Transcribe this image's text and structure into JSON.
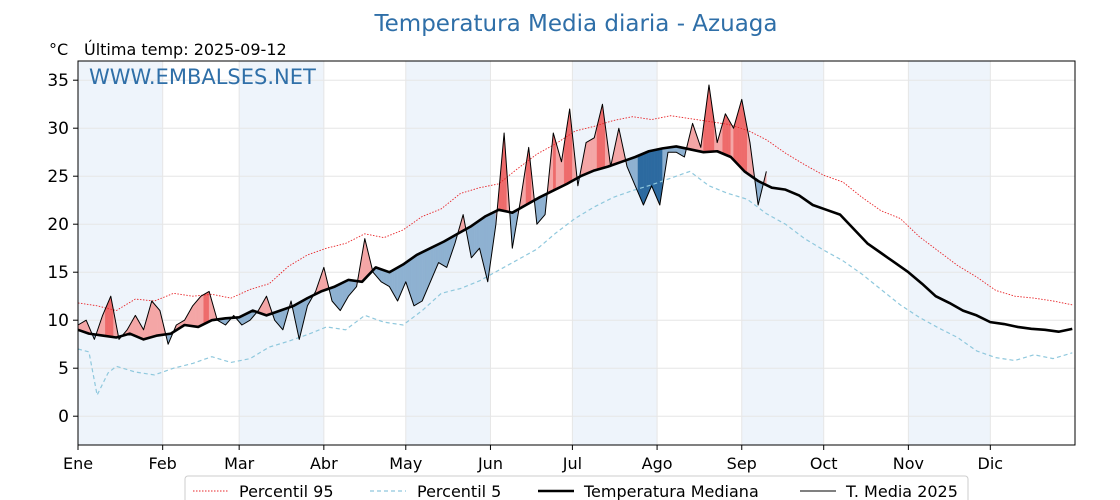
{
  "page": {
    "title": "Temperatura Media diaria - Azuaga",
    "unit_label": "°C",
    "last_temp": "Última temp: 2025-09-12",
    "watermark": "WWW.EMBALSES.NET"
  },
  "colors": {
    "title": "#2f6fa8",
    "watermark": "#2f6fa8",
    "p95": "#e8262a",
    "p5": "#8fc8dd",
    "median": "#000000",
    "mean2025": "#000000",
    "above_fill": "#f4a6a6",
    "above_fill_strong": "#ee6b6b",
    "below_fill": "#8eb1d1",
    "below_fill_strong": "#2c6aa0",
    "band": "#eef4fb"
  },
  "chart_data": {
    "type": "line",
    "title": "Temperatura Media diaria - Azuaga",
    "ylabel": "°C",
    "ylim": [
      -3,
      37
    ],
    "yticks": [
      0,
      5,
      10,
      15,
      20,
      25,
      30,
      35
    ],
    "xlim": [
      1,
      366
    ],
    "grid": true,
    "legend_position": "bottom",
    "months": [
      {
        "label": "Ene",
        "day": 1
      },
      {
        "label": "Feb",
        "day": 32
      },
      {
        "label": "Mar",
        "day": 60
      },
      {
        "label": "Abr",
        "day": 91
      },
      {
        "label": "May",
        "day": 121
      },
      {
        "label": "Jun",
        "day": 152
      },
      {
        "label": "Jul",
        "day": 182
      },
      {
        "label": "Ago",
        "day": 213
      },
      {
        "label": "Sep",
        "day": 244
      },
      {
        "label": "Oct",
        "day": 274
      },
      {
        "label": "Nov",
        "day": 305
      },
      {
        "label": "Dic",
        "day": 335
      }
    ],
    "shaded_months": [
      "Ene",
      "Mar",
      "May",
      "Jul",
      "Sep",
      "Nov"
    ],
    "series": [
      {
        "name": "Percentil 95",
        "style": "dotted",
        "x": [
          1,
          8,
          15,
          22,
          29,
          36,
          43,
          50,
          57,
          64,
          71,
          78,
          85,
          92,
          99,
          106,
          113,
          120,
          127,
          134,
          141,
          148,
          155,
          162,
          169,
          176,
          183,
          190,
          197,
          204,
          211,
          218,
          225,
          232,
          239,
          246,
          253,
          260,
          267,
          274,
          281,
          288,
          295,
          302,
          309,
          316,
          323,
          330,
          337,
          344,
          351,
          358,
          365
        ],
        "y": [
          11.8,
          11.5,
          11.0,
          12.2,
          12.0,
          12.8,
          12.5,
          12.7,
          12.3,
          13.2,
          13.8,
          15.6,
          16.8,
          17.5,
          18.0,
          19.0,
          18.6,
          19.4,
          20.8,
          21.6,
          23.2,
          23.8,
          24.2,
          25.8,
          27.3,
          28.4,
          29.7,
          30.2,
          30.8,
          31.2,
          30.9,
          31.3,
          31.0,
          30.7,
          30.4,
          29.8,
          28.8,
          27.4,
          26.2,
          25.1,
          24.4,
          22.8,
          21.4,
          20.6,
          18.7,
          17.2,
          15.7,
          14.5,
          13.1,
          12.5,
          12.3,
          12.0,
          11.6
        ]
      },
      {
        "name": "Percentil 5",
        "style": "dashed",
        "x": [
          1,
          5,
          8,
          12,
          15,
          22,
          29,
          36,
          43,
          50,
          57,
          64,
          71,
          78,
          85,
          92,
          99,
          106,
          113,
          120,
          127,
          134,
          141,
          148,
          155,
          162,
          169,
          176,
          183,
          190,
          197,
          204,
          211,
          218,
          225,
          232,
          239,
          246,
          253,
          260,
          267,
          274,
          281,
          288,
          295,
          302,
          309,
          316,
          323,
          330,
          337,
          344,
          351,
          358,
          365
        ],
        "y": [
          7.0,
          6.7,
          2.2,
          4.5,
          5.2,
          4.6,
          4.3,
          5.0,
          5.5,
          6.2,
          5.6,
          6.0,
          7.2,
          7.8,
          8.5,
          9.3,
          9.0,
          10.5,
          9.8,
          9.5,
          11.0,
          12.8,
          13.3,
          14.1,
          15.2,
          16.3,
          17.4,
          19.1,
          20.6,
          21.8,
          22.8,
          23.5,
          24.1,
          24.8,
          25.5,
          24.0,
          23.2,
          22.6,
          21.1,
          20.0,
          18.5,
          17.3,
          16.2,
          14.8,
          13.2,
          11.6,
          10.3,
          9.2,
          8.2,
          6.8,
          6.1,
          5.8,
          6.4,
          6.0,
          6.6
        ]
      },
      {
        "name": "Temperatura Mediana",
        "style": "thick",
        "x": [
          1,
          5,
          10,
          15,
          20,
          25,
          30,
          35,
          40,
          45,
          50,
          55,
          60,
          65,
          70,
          75,
          80,
          85,
          90,
          95,
          100,
          105,
          110,
          115,
          120,
          125,
          130,
          135,
          140,
          145,
          150,
          155,
          160,
          165,
          170,
          175,
          180,
          185,
          190,
          195,
          200,
          205,
          210,
          215,
          220,
          225,
          230,
          235,
          240,
          245,
          250,
          255,
          260,
          265,
          270,
          275,
          280,
          285,
          290,
          295,
          300,
          305,
          310,
          315,
          320,
          325,
          330,
          335,
          340,
          345,
          350,
          355,
          360,
          365
        ],
        "y": [
          9.0,
          8.6,
          8.4,
          8.2,
          8.6,
          8.0,
          8.4,
          8.6,
          9.5,
          9.3,
          10.0,
          10.2,
          10.3,
          11.0,
          10.5,
          11.0,
          11.5,
          12.3,
          13.0,
          13.5,
          14.2,
          14.0,
          15.5,
          15.0,
          15.8,
          16.8,
          17.5,
          18.2,
          19.0,
          19.8,
          20.8,
          21.5,
          21.2,
          22.0,
          22.8,
          23.5,
          24.2,
          25.0,
          25.6,
          26.0,
          26.5,
          27.0,
          27.6,
          27.9,
          28.1,
          27.8,
          27.5,
          27.6,
          27.0,
          25.5,
          24.5,
          23.8,
          23.6,
          23.0,
          22.0,
          21.5,
          21.0,
          19.5,
          18.0,
          17.0,
          16.0,
          15.0,
          13.8,
          12.5,
          11.8,
          11.0,
          10.5,
          9.8,
          9.6,
          9.3,
          9.1,
          9.0,
          8.8,
          9.1
        ]
      },
      {
        "name": "T. Media 2025",
        "style": "thin",
        "x": [
          1,
          4,
          7,
          10,
          13,
          16,
          19,
          22,
          25,
          28,
          31,
          34,
          37,
          40,
          43,
          46,
          49,
          52,
          55,
          58,
          61,
          64,
          67,
          70,
          73,
          76,
          79,
          82,
          85,
          88,
          91,
          94,
          97,
          100,
          103,
          106,
          109,
          112,
          115,
          118,
          121,
          124,
          127,
          130,
          133,
          136,
          139,
          142,
          145,
          148,
          151,
          154,
          157,
          160,
          163,
          166,
          169,
          172,
          175,
          178,
          181,
          184,
          187,
          190,
          193,
          196,
          199,
          202,
          205,
          208,
          211,
          214,
          217,
          220,
          223,
          226,
          229,
          232,
          235,
          238,
          241,
          244,
          247,
          250,
          253
        ],
        "y": [
          9.5,
          10.0,
          8.0,
          10.5,
          12.5,
          8.0,
          9.0,
          10.5,
          9.0,
          12.0,
          11.0,
          7.5,
          9.5,
          10.0,
          11.5,
          12.5,
          13.0,
          10.0,
          9.5,
          10.5,
          9.5,
          10.0,
          11.0,
          12.5,
          10.0,
          9.0,
          12.0,
          8.0,
          11.5,
          13.0,
          15.5,
          12.0,
          11.0,
          12.5,
          13.5,
          18.5,
          15.0,
          14.0,
          13.5,
          12.0,
          14.0,
          11.5,
          12.0,
          14.0,
          16.0,
          15.5,
          18.0,
          21.0,
          16.5,
          17.5,
          14.0,
          20.0,
          29.5,
          17.5,
          22.5,
          28.0,
          20.0,
          21.0,
          29.5,
          26.5,
          32.0,
          24.0,
          28.5,
          29.0,
          32.5,
          26.0,
          30.0,
          26.0,
          24.0,
          22.0,
          24.0,
          22.0,
          27.5,
          27.5,
          27.0,
          30.5,
          28.0,
          34.5,
          28.5,
          31.5,
          30.0,
          33.0,
          28.5,
          22.0,
          25.5
        ]
      }
    ]
  },
  "legend": {
    "p95": "Percentil 95",
    "p5": "Percentil 5",
    "median": "Temperatura Mediana",
    "mean2025": "T. Media 2025"
  }
}
